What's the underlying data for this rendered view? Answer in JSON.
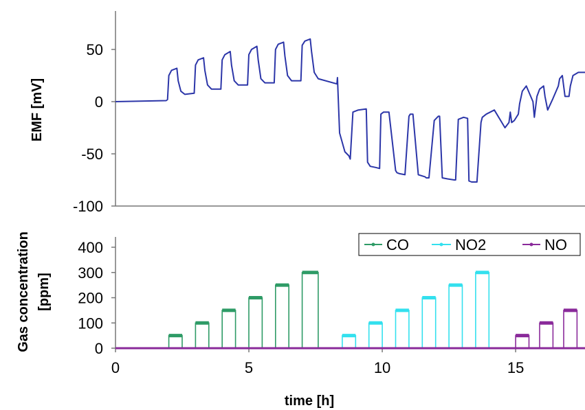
{
  "chart_data": [
    {
      "type": "line",
      "ylabel": "EMF [mV]",
      "ylim": [
        -100,
        80
      ],
      "xlim": [
        0,
        17.6
      ],
      "yticks": [
        "50",
        "0",
        "-50",
        "-100"
      ],
      "ytick_values": [
        50,
        0,
        -50,
        -100
      ],
      "grid": false,
      "series": [
        {
          "color": "#2b35a8",
          "x": [
            0,
            1.9,
            1.95,
            2.0,
            2.1,
            2.3,
            2.35,
            2.45,
            2.6,
            2.95,
            3.0,
            3.1,
            3.3,
            3.35,
            3.45,
            3.6,
            3.95,
            4.0,
            4.1,
            4.3,
            4.35,
            4.45,
            4.6,
            4.95,
            5.0,
            5.1,
            5.3,
            5.35,
            5.45,
            5.6,
            5.95,
            6.0,
            6.1,
            6.3,
            6.35,
            6.45,
            6.6,
            6.95,
            7.0,
            7.1,
            7.3,
            7.35,
            7.45,
            7.6,
            8.3,
            8.32,
            8.4,
            8.6,
            8.75,
            8.8,
            8.9,
            9.1,
            9.4,
            9.45,
            9.55,
            9.75,
            9.9,
            9.95,
            10.05,
            10.25,
            10.5,
            10.55,
            10.65,
            10.85,
            11.0,
            11.05,
            11.15,
            11.35,
            11.6,
            11.65,
            11.75,
            11.95,
            12.1,
            12.15,
            12.25,
            12.45,
            12.7,
            12.75,
            12.85,
            13.05,
            13.2,
            13.25,
            13.35,
            13.55,
            13.7,
            13.75,
            13.9,
            14.2,
            14.6,
            14.75,
            14.8,
            14.85,
            14.95,
            15.1,
            15.15,
            15.25,
            15.4,
            15.65,
            15.7,
            15.8,
            15.9,
            16.05,
            16.1,
            16.2,
            16.4,
            16.6,
            16.65,
            16.75,
            16.85,
            17.0,
            17.05,
            17.15,
            17.35,
            17.6
          ],
          "y": [
            0,
            1,
            2,
            25,
            30,
            32,
            20,
            10,
            7,
            8,
            35,
            40,
            42,
            30,
            16,
            12,
            12,
            40,
            45,
            48,
            35,
            20,
            16,
            16,
            45,
            50,
            53,
            40,
            22,
            18,
            18,
            50,
            55,
            57,
            44,
            25,
            20,
            20,
            54,
            58,
            60,
            48,
            28,
            22,
            17,
            23,
            -30,
            -48,
            -52,
            -55,
            -10,
            -8,
            -7,
            -58,
            -62,
            -63,
            -64,
            -12,
            -10,
            -10,
            -66,
            -68,
            -69,
            -70,
            -14,
            -12,
            -12,
            -70,
            -72,
            -73,
            -73,
            -18,
            -14,
            -14,
            -73,
            -74,
            -75,
            -75,
            -17,
            -15,
            -16,
            -76,
            -77,
            -77,
            -20,
            -15,
            -12,
            -8,
            -25,
            -20,
            -10,
            -20,
            -18,
            -12,
            -2,
            10,
            15,
            0,
            -15,
            5,
            12,
            15,
            5,
            -8,
            3,
            15,
            22,
            25,
            5,
            5,
            15,
            25,
            28,
            28
          ]
        }
      ]
    },
    {
      "type": "line",
      "xlabel": "time [h]",
      "ylabel": "Gas concentration [ppm]",
      "xlim": [
        0,
        17.6
      ],
      "ylim": [
        0,
        450
      ],
      "xticks": [
        "0",
        "5",
        "10",
        "15"
      ],
      "xtick_values": [
        0,
        5,
        10,
        15
      ],
      "yticks": [
        "400",
        "300",
        "200",
        "100",
        "0"
      ],
      "ytick_values": [
        400,
        300,
        200,
        100,
        0
      ],
      "grid": false,
      "legend_position": "top-right",
      "series": [
        {
          "name": "CO",
          "color": "#2e9b66",
          "pulses": [
            [
              2.0,
              2.5,
              50
            ],
            [
              3.0,
              3.5,
              100
            ],
            [
              4.0,
              4.5,
              150
            ],
            [
              5.0,
              5.5,
              200
            ],
            [
              6.0,
              6.5,
              250
            ],
            [
              7.0,
              7.6,
              300
            ]
          ]
        },
        {
          "name": "NO2",
          "color": "#33e0ee",
          "pulses": [
            [
              8.5,
              9.0,
              50
            ],
            [
              9.5,
              10.0,
              100
            ],
            [
              10.5,
              11.0,
              150
            ],
            [
              11.5,
              12.0,
              200
            ],
            [
              12.5,
              13.0,
              250
            ],
            [
              13.5,
              14.0,
              300
            ]
          ]
        },
        {
          "name": "NO",
          "color": "#8a2a9a",
          "pulses": [
            [
              15.0,
              15.5,
              50
            ],
            [
              15.9,
              16.4,
              100
            ],
            [
              16.8,
              17.3,
              150
            ]
          ]
        }
      ]
    }
  ]
}
